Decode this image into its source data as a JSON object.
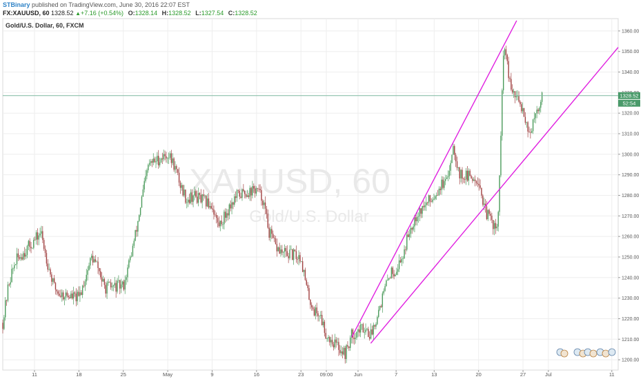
{
  "header": {
    "author": "STBinary",
    "published_text": " published on TradingView.com, June 30, 2016 22:07 EST",
    "symbol": "FX:XAUUSD, 60",
    "last": "1328.52",
    "change": "+7.16 (+0.54%)",
    "open_label": "O:",
    "open": "1328.14",
    "high_label": "H:",
    "high": "1328.52",
    "low_label": "L:",
    "low": "1327.54",
    "close_label": "C:",
    "close": "1328.52"
  },
  "chart_title": "Gold/U.S. Dollar, 60, FXCM",
  "watermark": {
    "symbol": "XAUUSD, 60",
    "name": "Gold/U.S. Dollar"
  },
  "price_tags": {
    "last_price": "1328.52",
    "countdown": "52:54"
  },
  "colors": {
    "up": "#4a9a5a",
    "down": "#a04040",
    "trendline": "#e020e0",
    "price_line": "#7fb8a0",
    "tag": "#4a9a6a",
    "grid": "#eeeeee"
  },
  "chart_data": {
    "type": "candlestick",
    "title": "Gold/U.S. Dollar, 60, FXCM",
    "y_ticks": [
      1200,
      1210,
      1220,
      1230,
      1240,
      1250,
      1260,
      1270,
      1280,
      1290,
      1300,
      1310,
      1320,
      1330,
      1340,
      1350,
      1360
    ],
    "y_tick_labels": [
      "1200.00",
      "1210.00",
      "1220.00",
      "1230.00",
      "1240.00",
      "1250.00",
      "1260.00",
      "1270.00",
      "1280.00",
      "1290.00",
      "1300.00",
      "1310.00",
      "1320.00",
      "1330.00",
      "1340.00",
      "1350.00",
      "1360.00"
    ],
    "ylim": [
      1195,
      1366
    ],
    "x_axis_dates": [
      "2016-04-06",
      "2016-07-12"
    ],
    "x_ticks": [
      {
        "label": "11",
        "date": "2016-04-11"
      },
      {
        "label": "18",
        "date": "2016-04-18"
      },
      {
        "label": "25",
        "date": "2016-04-25"
      },
      {
        "label": "May",
        "date": "2016-05-02"
      },
      {
        "label": "9",
        "date": "2016-05-09"
      },
      {
        "label": "16",
        "date": "2016-05-16"
      },
      {
        "label": "23",
        "date": "2016-05-23"
      },
      {
        "label": "09:00",
        "date": "2016-05-27"
      },
      {
        "label": "Jun",
        "date": "2016-06-01"
      },
      {
        "label": "7",
        "date": "2016-06-07"
      },
      {
        "label": "13",
        "date": "2016-06-13"
      },
      {
        "label": "20",
        "date": "2016-06-20"
      },
      {
        "label": "27",
        "date": "2016-06-27"
      },
      {
        "label": "Jul",
        "date": "2016-07-01"
      },
      {
        "label": "11",
        "date": "2016-07-11"
      }
    ],
    "price_path": [
      [
        "2016-04-06",
        1218
      ],
      [
        "2016-04-07",
        1238
      ],
      [
        "2016-04-08",
        1248
      ],
      [
        "2016-04-11",
        1258
      ],
      [
        "2016-04-12",
        1262
      ],
      [
        "2016-04-13",
        1248
      ],
      [
        "2016-04-14",
        1236
      ],
      [
        "2016-04-15",
        1232
      ],
      [
        "2016-04-18",
        1230
      ],
      [
        "2016-04-19",
        1240
      ],
      [
        "2016-04-20",
        1250
      ],
      [
        "2016-04-21",
        1245
      ],
      [
        "2016-04-22",
        1235
      ],
      [
        "2016-04-25",
        1236
      ],
      [
        "2016-04-26",
        1248
      ],
      [
        "2016-04-27",
        1262
      ],
      [
        "2016-04-28",
        1280
      ],
      [
        "2016-04-29",
        1295
      ],
      [
        "2016-05-02",
        1300
      ],
      [
        "2016-05-03",
        1295
      ],
      [
        "2016-05-04",
        1285
      ],
      [
        "2016-05-05",
        1278
      ],
      [
        "2016-05-06",
        1280
      ],
      [
        "2016-05-09",
        1275
      ],
      [
        "2016-05-10",
        1265
      ],
      [
        "2016-05-11",
        1270
      ],
      [
        "2016-05-12",
        1276
      ],
      [
        "2016-05-13",
        1280
      ],
      [
        "2016-05-16",
        1283
      ],
      [
        "2016-05-17",
        1278
      ],
      [
        "2016-05-18",
        1262
      ],
      [
        "2016-05-19",
        1255
      ],
      [
        "2016-05-20",
        1252
      ],
      [
        "2016-05-23",
        1250
      ],
      [
        "2016-05-24",
        1233
      ],
      [
        "2016-05-25",
        1224
      ],
      [
        "2016-05-26",
        1222
      ],
      [
        "2016-05-27",
        1212
      ],
      [
        "2016-05-30",
        1203
      ],
      [
        "2016-05-31",
        1212
      ],
      [
        "2016-06-01",
        1214
      ],
      [
        "2016-06-02",
        1216
      ],
      [
        "2016-06-03",
        1212
      ],
      [
        "2016-06-06",
        1242
      ],
      [
        "2016-06-07",
        1244
      ],
      [
        "2016-06-08",
        1250
      ],
      [
        "2016-06-09",
        1262
      ],
      [
        "2016-06-10",
        1270
      ],
      [
        "2016-06-13",
        1280
      ],
      [
        "2016-06-14",
        1285
      ],
      [
        "2016-06-15",
        1286
      ],
      [
        "2016-06-16",
        1305
      ],
      [
        "2016-06-17",
        1290
      ],
      [
        "2016-06-20",
        1288
      ],
      [
        "2016-06-21",
        1272
      ],
      [
        "2016-06-22",
        1268
      ],
      [
        "2016-06-23",
        1262
      ],
      [
        "2016-06-24",
        1355
      ],
      [
        "2016-06-25",
        1332
      ],
      [
        "2016-06-27",
        1322
      ],
      [
        "2016-06-28",
        1310
      ],
      [
        "2016-06-29",
        1318
      ],
      [
        "2016-06-30",
        1328.52
      ]
    ],
    "trendlines": [
      {
        "from": [
          "2016-05-31",
          1211
        ],
        "to": [
          "2016-06-26",
          1365
        ]
      },
      {
        "from": [
          "2016-06-03",
          1208
        ],
        "to": [
          "2016-07-12",
          1352
        ]
      }
    ],
    "horizontal_line": 1328.52
  }
}
